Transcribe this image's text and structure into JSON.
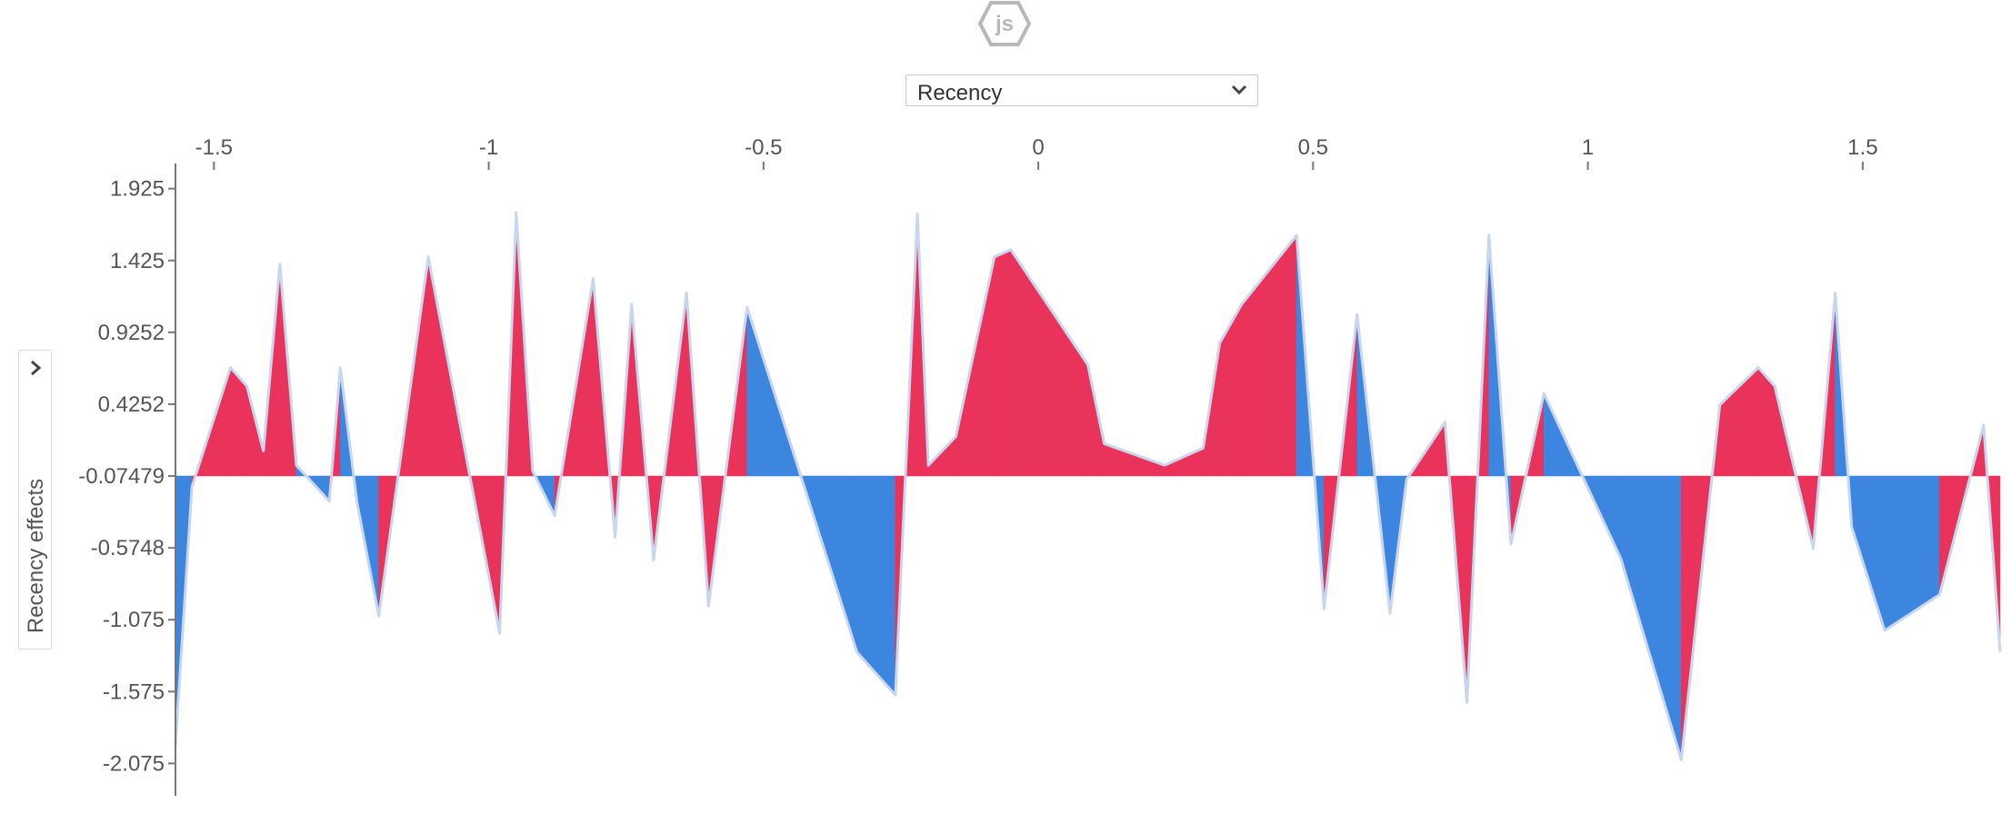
{
  "logo": {
    "label": "js",
    "icon": "hexagon-js-icon"
  },
  "selector": {
    "selected": "Recency",
    "icon": "chevron-down-icon"
  },
  "sidebar": {
    "icon": "chevron-right-icon"
  },
  "colors": {
    "positive": "#ea335a",
    "negative": "#3c86e0",
    "outline": "#c9d6f0",
    "axis": "#777777"
  },
  "chart_data": {
    "type": "area",
    "ylabel": "Recency effects",
    "xlim": [
      -1.57,
      1.75
    ],
    "ylim": [
      -2.3,
      2.1
    ],
    "baseline": -0.07479,
    "x_ticks": [
      "-1.5",
      "-1",
      "-0.5",
      "0",
      "0.5",
      "1",
      "1.5"
    ],
    "x_tick_values": [
      -1.5,
      -1,
      -0.5,
      0,
      0.5,
      1,
      1.5
    ],
    "y_ticks": [
      "1.925",
      "1.425",
      "0.9252",
      "0.4252",
      "-0.07479",
      "-0.5748",
      "-1.075",
      "-1.575",
      "-2.075"
    ],
    "y_tick_values": [
      1.925,
      1.425,
      0.9252,
      0.4252,
      -0.07479,
      -0.5748,
      -1.075,
      -1.575,
      -2.075
    ],
    "points": [
      [
        -1.57,
        -1.95,
        0
      ],
      [
        -1.54,
        -0.15,
        0
      ],
      [
        -1.47,
        0.68,
        1
      ],
      [
        -1.44,
        0.55,
        1
      ],
      [
        -1.41,
        0.1,
        1
      ],
      [
        -1.38,
        1.4,
        1
      ],
      [
        -1.35,
        0.0,
        1
      ],
      [
        -1.29,
        -0.25,
        0
      ],
      [
        -1.27,
        0.68,
        1
      ],
      [
        -1.24,
        -0.25,
        0
      ],
      [
        -1.2,
        -1.05,
        0
      ],
      [
        -1.11,
        1.45,
        1
      ],
      [
        -0.98,
        -1.17,
        1
      ],
      [
        -0.95,
        1.76,
        1
      ],
      [
        -0.92,
        -0.04,
        1
      ],
      [
        -0.88,
        -0.35,
        0
      ],
      [
        -0.81,
        1.3,
        1
      ],
      [
        -0.77,
        -0.5,
        1
      ],
      [
        -0.74,
        1.12,
        1
      ],
      [
        -0.7,
        -0.66,
        1
      ],
      [
        -0.64,
        1.2,
        1
      ],
      [
        -0.6,
        -0.98,
        1
      ],
      [
        -0.53,
        1.1,
        1
      ],
      [
        -0.33,
        -1.3,
        0
      ],
      [
        -0.26,
        -1.6,
        0
      ],
      [
        -0.22,
        1.75,
        1
      ],
      [
        -0.2,
        0.0,
        1
      ],
      [
        -0.15,
        0.2,
        1
      ],
      [
        -0.08,
        1.45,
        1
      ],
      [
        -0.05,
        1.5,
        1
      ],
      [
        0.09,
        0.7,
        1
      ],
      [
        0.12,
        0.15,
        1
      ],
      [
        0.23,
        0.0,
        1
      ],
      [
        0.3,
        0.12,
        1
      ],
      [
        0.33,
        0.85,
        1
      ],
      [
        0.37,
        1.12,
        1
      ],
      [
        0.47,
        1.6,
        1
      ],
      [
        0.52,
        -1.0,
        0
      ],
      [
        0.58,
        1.05,
        1
      ],
      [
        0.64,
        -1.03,
        0
      ],
      [
        0.67,
        -0.1,
        0
      ],
      [
        0.74,
        0.3,
        1
      ],
      [
        0.78,
        -1.65,
        1
      ],
      [
        0.82,
        1.6,
        1
      ],
      [
        0.86,
        -0.55,
        0
      ],
      [
        0.92,
        0.5,
        1
      ],
      [
        1.06,
        -0.65,
        0
      ],
      [
        1.17,
        -2.05,
        0
      ],
      [
        1.24,
        0.42,
        1
      ],
      [
        1.31,
        0.68,
        1
      ],
      [
        1.34,
        0.55,
        1
      ],
      [
        1.41,
        -0.58,
        1
      ],
      [
        1.45,
        1.2,
        1
      ],
      [
        1.48,
        -0.43,
        0
      ],
      [
        1.54,
        -1.15,
        0
      ],
      [
        1.64,
        -0.9,
        0
      ],
      [
        1.72,
        0.28,
        1
      ],
      [
        1.75,
        -1.3,
        1
      ]
    ]
  }
}
